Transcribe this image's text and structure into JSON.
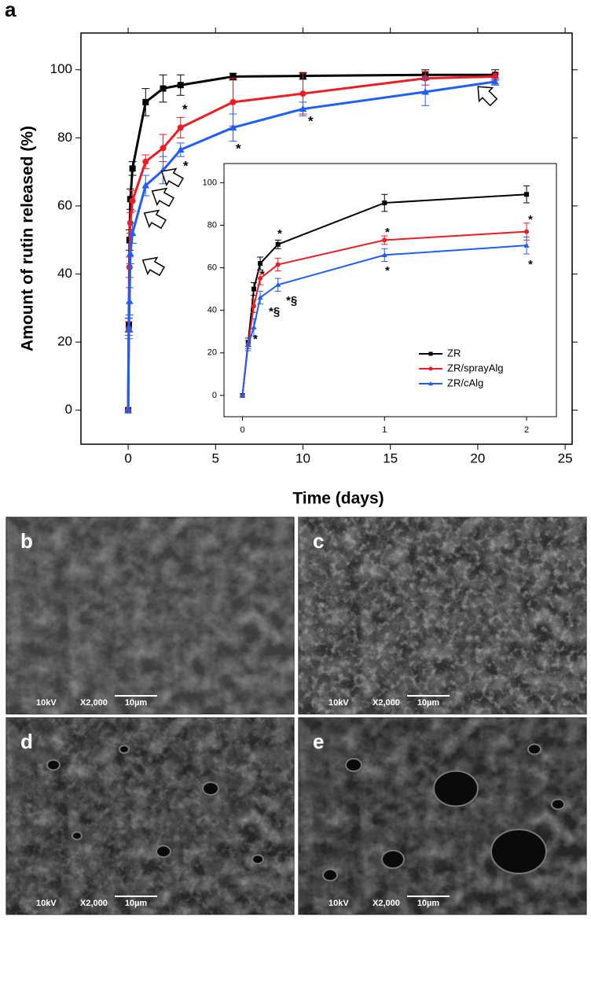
{
  "figure_label": "a",
  "chart_data": [
    {
      "type": "line",
      "y_label": "Amount of rutin released (%)",
      "x_label": "Time (days)",
      "x": [
        0,
        0.04,
        0.08,
        0.125,
        0.25,
        1,
        2,
        3,
        6,
        10,
        17,
        21
      ],
      "series": [
        {
          "name": "ZR",
          "color": "#000000",
          "marker": "square",
          "values": [
            0,
            25,
            50,
            62,
            71,
            90.5,
            94.5,
            95.5,
            98,
            98.2,
            98.5,
            98.5
          ],
          "errors": [
            0,
            2,
            3,
            3,
            2,
            4,
            4,
            3,
            1,
            1,
            1.5,
            1.5
          ]
        },
        {
          "name": "ZR/sprayAlg",
          "color": "#ee1c25",
          "marker": "circle",
          "values": [
            0,
            24,
            42,
            55,
            61.5,
            73,
            77,
            83,
            90.5,
            93,
            97.5,
            98
          ],
          "errors": [
            0,
            2,
            3,
            3,
            3,
            2,
            4,
            3,
            7,
            6,
            2,
            1
          ]
        },
        {
          "name": "ZR/cAlg",
          "color": "#1f5ff5",
          "marker": "triangle",
          "values": [
            0,
            24,
            32,
            46,
            52,
            66,
            70.5,
            76.5,
            83,
            88.5,
            93.5,
            96.5
          ],
          "errors": [
            0,
            3,
            4,
            3,
            3,
            3,
            4,
            2,
            4,
            2,
            4,
            1
          ]
        }
      ],
      "xlim": [
        -2.7,
        25.4
      ],
      "ylim": [
        -10,
        110.8
      ],
      "xticks": [
        0,
        5,
        10,
        15,
        20,
        25
      ],
      "yticks": [
        0,
        20,
        40,
        60,
        80,
        100
      ],
      "annotations": [
        "*",
        "*",
        "*",
        "*"
      ]
    },
    {
      "type": "line",
      "inset": true,
      "x": [
        0,
        0.04,
        0.08,
        0.125,
        0.25,
        1,
        2
      ],
      "series": [
        {
          "name": "ZR",
          "color": "#000000",
          "marker": "square",
          "values": [
            0,
            25,
            50,
            62,
            71,
            90.5,
            94.5
          ],
          "errors": [
            0,
            2,
            3,
            3,
            2,
            4,
            4
          ]
        },
        {
          "name": "ZR/sprayAlg",
          "color": "#ee1c25",
          "marker": "circle",
          "values": [
            0,
            24,
            42,
            55,
            61.5,
            73,
            77
          ],
          "errors": [
            0,
            2,
            3,
            3,
            3,
            2,
            4
          ]
        },
        {
          "name": "ZR/cAlg",
          "color": "#1f5ff5",
          "marker": "triangle",
          "values": [
            0,
            24,
            32,
            46,
            52,
            66,
            70.5
          ],
          "errors": [
            0,
            3,
            4,
            3,
            3,
            3,
            4
          ]
        }
      ],
      "xlim": [
        -0.13,
        2.21
      ],
      "ylim": [
        -10,
        109
      ],
      "xticks": [
        0,
        1,
        2
      ],
      "yticks": [
        0,
        20,
        40,
        60,
        80,
        100
      ],
      "legend": "lower right",
      "annotations": [
        "*",
        "*",
        "*",
        "*",
        "*",
        "*",
        "*§",
        "*§",
        "*"
      ]
    }
  ],
  "panels": [
    {
      "label": "b",
      "voltage": "10kV",
      "magnification": "X2,000",
      "scale": "10µm"
    },
    {
      "label": "c",
      "voltage": "10kV",
      "magnification": "X2,000",
      "scale": "10µm"
    },
    {
      "label": "d",
      "voltage": "10kV",
      "magnification": "X2,000",
      "scale": "10µm"
    },
    {
      "label": "e",
      "voltage": "10kV",
      "magnification": "X2,000",
      "scale": "10µm"
    }
  ]
}
